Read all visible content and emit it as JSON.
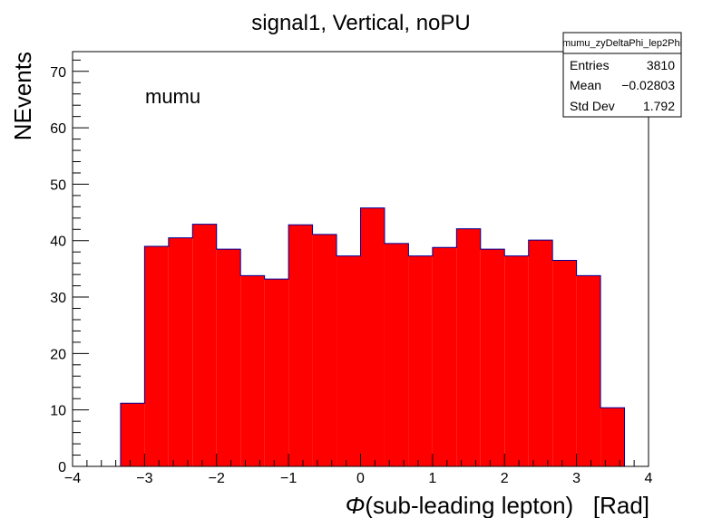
{
  "chart_data": {
    "type": "bar",
    "title": "signal1, Vertical, noPU",
    "xlabel_symbol": "Φ",
    "xlabel": "(sub-leading lepton)   [Rad]",
    "ylabel": "NEvents",
    "annotation": "mumu",
    "xlim": [
      -4,
      4
    ],
    "ylim": [
      0,
      73.5
    ],
    "bin_width": 0.3333,
    "bins": [
      {
        "x_low": -3.3333,
        "value": 11.2
      },
      {
        "x_low": -3.0,
        "value": 39.0
      },
      {
        "x_low": -2.6667,
        "value": 40.5
      },
      {
        "x_low": -2.3333,
        "value": 42.9
      },
      {
        "x_low": -2.0,
        "value": 38.5
      },
      {
        "x_low": -1.6667,
        "value": 33.8
      },
      {
        "x_low": -1.3333,
        "value": 33.2
      },
      {
        "x_low": -1.0,
        "value": 42.8
      },
      {
        "x_low": -0.6667,
        "value": 41.1
      },
      {
        "x_low": -0.3333,
        "value": 37.3
      },
      {
        "x_low": 0.0,
        "value": 45.8
      },
      {
        "x_low": 0.3333,
        "value": 39.5
      },
      {
        "x_low": 0.6667,
        "value": 37.3
      },
      {
        "x_low": 1.0,
        "value": 38.8
      },
      {
        "x_low": 1.3333,
        "value": 42.1
      },
      {
        "x_low": 1.6667,
        "value": 38.5
      },
      {
        "x_low": 2.0,
        "value": 37.3
      },
      {
        "x_low": 2.3333,
        "value": 40.1
      },
      {
        "x_low": 2.6667,
        "value": 36.5
      },
      {
        "x_low": 3.0,
        "value": 33.8
      },
      {
        "x_low": 3.3333,
        "value": 10.4
      }
    ],
    "xticks": [
      -4,
      -3,
      -2,
      -1,
      0,
      1,
      2,
      3,
      4
    ],
    "xtick_labels": [
      "−4",
      "−3",
      "−2",
      "−1",
      "0",
      "1",
      "2",
      "3",
      "4"
    ],
    "yticks": [
      0,
      10,
      20,
      30,
      40,
      50,
      60,
      70
    ],
    "ytick_labels": [
      "0",
      "10",
      "20",
      "30",
      "40",
      "50",
      "60",
      "70"
    ],
    "fill_color": "#ff0000",
    "line_color": "#000099",
    "grid": false
  },
  "stats_box": {
    "name": "mumu_zyDeltaPhi_lep2Phi",
    "rows": [
      {
        "label": "Entries",
        "value": "3810"
      },
      {
        "label": "Mean",
        "value": "−0.02803"
      },
      {
        "label": "Std Dev",
        "value": "1.792"
      }
    ]
  }
}
